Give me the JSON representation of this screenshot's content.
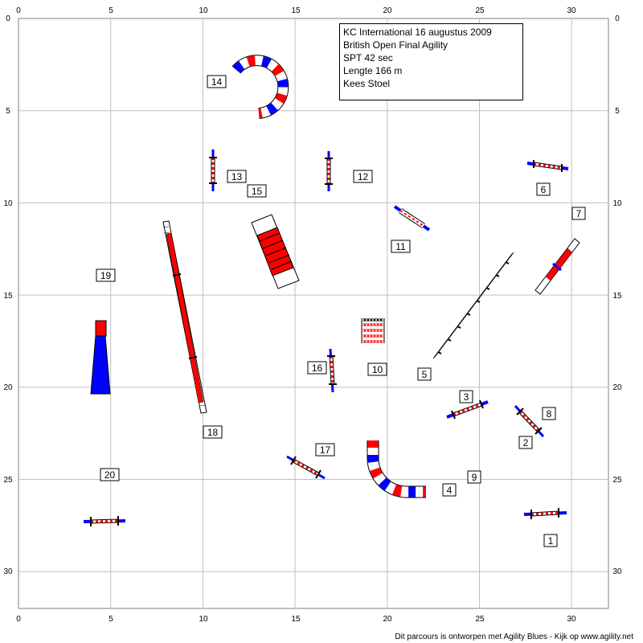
{
  "course_info": {
    "lines": [
      "KC International 16 augustus 2009",
      "British Open Final  Agility",
      "SPT 42 sec",
      "Lengte 166 m",
      "Kees Stoel"
    ]
  },
  "axes": {
    "x_ticks": [
      "0",
      "5",
      "10",
      "15",
      "20",
      "25",
      "30"
    ],
    "y_ticks": [
      "0",
      "5",
      "10",
      "15",
      "20",
      "25",
      "30"
    ]
  },
  "obstacles": {
    "numbers": [
      "14",
      "13",
      "15",
      "12",
      "6",
      "7",
      "11",
      "19",
      "16",
      "10",
      "5",
      "3",
      "8",
      "2",
      "18",
      "17",
      "20",
      "4",
      "9",
      "1"
    ]
  },
  "colors": {
    "red": "#ff0000",
    "blue": "#0000ff",
    "grid": "#c0c0c0"
  },
  "footer": "Dit parcours is ontworpen met Agility Blues - Kijk op www.agility.net"
}
